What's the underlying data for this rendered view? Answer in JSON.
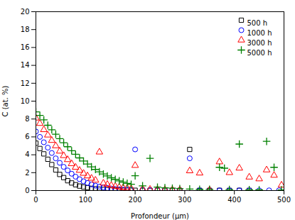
{
  "chart_data": {
    "type": "scatter",
    "xlabel": "Profondeur (μm)",
    "ylabel": "C (at. %)",
    "xlim": [
      0,
      500
    ],
    "ylim": [
      0,
      20
    ],
    "xticks": [
      0,
      100,
      200,
      300,
      400,
      500
    ],
    "yticks": [
      0,
      2,
      4,
      6,
      8,
      10,
      12,
      14,
      16,
      18,
      20
    ],
    "grid": false,
    "legend": "upper right",
    "series": [
      {
        "name": "500 h",
        "color": "black",
        "marker": "square",
        "x": [
          0,
          8,
          16,
          24,
          32,
          40,
          48,
          56,
          64,
          72,
          80,
          88,
          96,
          104,
          112,
          120,
          128,
          136,
          144,
          152,
          160,
          168,
          176,
          184,
          192,
          200,
          215,
          230,
          245,
          260,
          275,
          290,
          310,
          330,
          350,
          370,
          390,
          410,
          430
        ],
        "values": [
          5.3,
          4.7,
          4.1,
          3.5,
          2.9,
          2.3,
          1.8,
          1.45,
          1.1,
          0.85,
          0.65,
          0.5,
          0.4,
          0.32,
          0.25,
          0.2,
          0.15,
          0.12,
          0.09,
          0.07,
          0.06,
          0.05,
          0.04,
          0.04,
          0.03,
          0.03,
          0.03,
          0.02,
          0.02,
          0.02,
          0.02,
          0.02,
          4.6,
          0.02,
          0.02,
          0.02,
          0.02,
          0.02,
          0.02
        ]
      },
      {
        "name": "1000 h",
        "color": "blue",
        "marker": "circle",
        "x": [
          0,
          8,
          16,
          24,
          32,
          40,
          48,
          56,
          64,
          72,
          80,
          88,
          96,
          104,
          112,
          120,
          128,
          136,
          144,
          152,
          160,
          168,
          176,
          184,
          192,
          200,
          215,
          230,
          245,
          260,
          275,
          290,
          310,
          330,
          350,
          370,
          390,
          410,
          430,
          450,
          470,
          490
        ],
        "values": [
          6.6,
          6.0,
          5.4,
          4.8,
          4.2,
          3.6,
          3.1,
          2.65,
          2.25,
          1.88,
          1.55,
          1.27,
          1.04,
          0.85,
          0.68,
          0.55,
          0.44,
          0.35,
          0.28,
          0.22,
          0.18,
          0.14,
          0.11,
          0.09,
          0.07,
          4.6,
          0.06,
          0.05,
          0.04,
          0.04,
          0.03,
          0.03,
          3.6,
          0.03,
          0.02,
          0.02,
          0.02,
          0.02,
          0.02,
          0.02,
          0.02,
          0.02
        ]
      },
      {
        "name": "3000 h",
        "color": "red",
        "marker": "triangle",
        "x": [
          0,
          8,
          16,
          24,
          32,
          40,
          48,
          56,
          64,
          72,
          80,
          88,
          96,
          104,
          112,
          120,
          128,
          136,
          144,
          152,
          160,
          168,
          176,
          184,
          192,
          200,
          215,
          230,
          245,
          260,
          275,
          290,
          310,
          330,
          350,
          370,
          390,
          410,
          430,
          450,
          465,
          480,
          495
        ],
        "values": [
          8.1,
          7.5,
          6.8,
          6.2,
          5.6,
          5.0,
          4.4,
          3.9,
          3.45,
          3.0,
          2.6,
          2.25,
          1.92,
          1.63,
          1.37,
          1.15,
          4.3,
          0.82,
          0.68,
          0.57,
          0.47,
          0.38,
          0.32,
          0.26,
          0.21,
          2.8,
          0.17,
          0.13,
          0.11,
          0.09,
          0.07,
          0.06,
          2.2,
          1.95,
          0.05,
          3.2,
          2.0,
          2.5,
          1.5,
          1.3,
          2.3,
          1.7,
          0.6
        ]
      },
      {
        "name": "5000 h",
        "color": "green",
        "marker": "plus",
        "x": [
          0,
          8,
          16,
          24,
          32,
          40,
          48,
          56,
          64,
          72,
          80,
          88,
          96,
          104,
          112,
          120,
          128,
          136,
          144,
          152,
          160,
          168,
          176,
          184,
          192,
          200,
          215,
          230,
          245,
          260,
          275,
          290,
          310,
          330,
          350,
          370,
          380,
          390,
          410,
          430,
          450,
          465,
          480,
          495
        ],
        "values": [
          8.8,
          8.4,
          7.9,
          7.3,
          6.8,
          6.3,
          5.8,
          5.35,
          4.9,
          4.45,
          4.05,
          3.65,
          3.3,
          2.97,
          2.65,
          2.36,
          2.1,
          1.85,
          1.63,
          1.43,
          1.25,
          1.08,
          0.94,
          0.81,
          0.7,
          1.65,
          0.53,
          3.6,
          0.38,
          0.31,
          0.26,
          0.21,
          0.17,
          0.14,
          0.13,
          2.6,
          2.5,
          0.11,
          5.2,
          0.09,
          0.08,
          5.5,
          2.6,
          0.07
        ]
      }
    ]
  }
}
